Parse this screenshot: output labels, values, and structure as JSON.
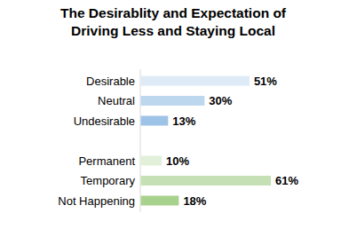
{
  "chart_data": {
    "type": "bar",
    "orientation": "horizontal",
    "title": "The Desirablity and Expectation of Driving Less and Staying Local",
    "categories": [
      "Desirable",
      "Neutral",
      "Undesirable",
      null,
      "Permanent",
      "Temporary",
      "Not Happening"
    ],
    "values": [
      51,
      30,
      13,
      null,
      10,
      61,
      18
    ],
    "value_labels": [
      "51%",
      "30%",
      "13%",
      null,
      "10%",
      "61%",
      "18%"
    ],
    "colors": [
      "#deebf7",
      "#bdd7ee",
      "#9dc3e6",
      null,
      "#e2f0d9",
      "#c5e0b4",
      "#a9d18e"
    ],
    "data_labels": true,
    "tick_labels": "y",
    "grid": false
  }
}
